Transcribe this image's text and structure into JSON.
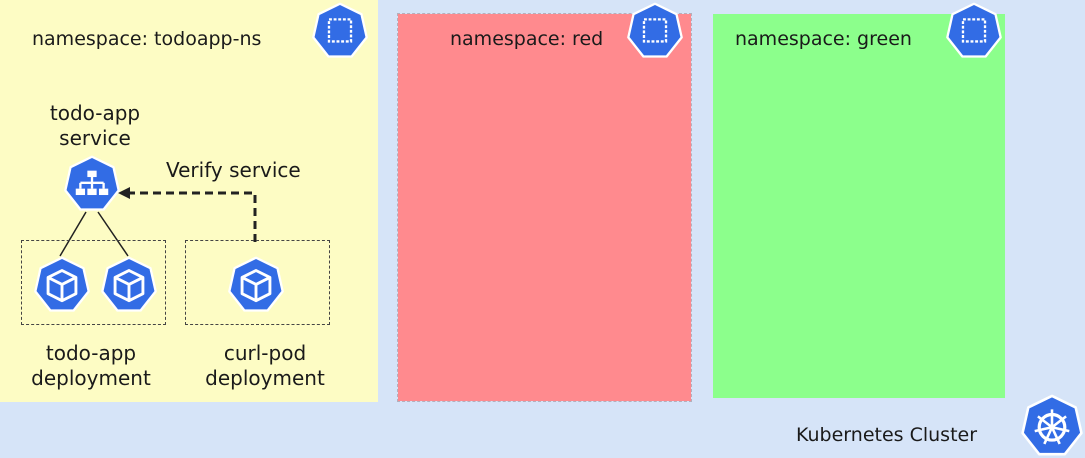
{
  "namespaces": {
    "todoapp": {
      "title": "namespace: todoapp-ns",
      "icon": "namespace-icon"
    },
    "red": {
      "title": "namespace: red",
      "icon": "namespace-icon"
    },
    "green": {
      "title": "namespace: green",
      "icon": "namespace-icon"
    }
  },
  "service": {
    "label_line1": "todo-app",
    "label_line2": "service",
    "icon": "service-icon"
  },
  "verify_label": "Verify service",
  "deployments": {
    "todo_app": {
      "label_line1": "todo-app",
      "label_line2": "deployment",
      "icon": "pod-icon"
    },
    "curl_pod": {
      "label_line1": "curl-pod",
      "label_line2": "deployment",
      "icon": "pod-icon"
    }
  },
  "cluster": {
    "label": "Kubernetes Cluster",
    "icon": "kubernetes-wheel-icon"
  },
  "colors": {
    "background": "#d6e4f8",
    "todoapp_ns": "#fdfcc4",
    "red_ns": "#ff8a8e",
    "green_ns": "#8cff8c",
    "k8s_blue": "#326ce5"
  }
}
